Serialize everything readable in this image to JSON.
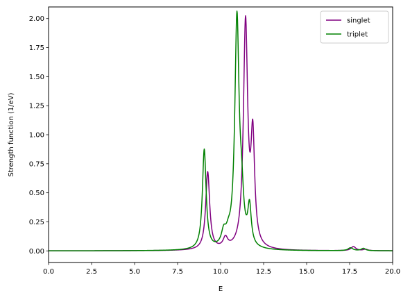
{
  "chart_data": {
    "type": "line",
    "title": "",
    "xlabel": "E",
    "ylabel": "Strength function (1/eV)",
    "xlim": [
      0,
      20
    ],
    "ylim": [
      -0.1,
      2.1
    ],
    "xticks": [
      0,
      2.5,
      5,
      7.5,
      10,
      12.5,
      15,
      17.5,
      20
    ],
    "xtick_labels": [
      "0.0",
      "2.5",
      "5.0",
      "7.5",
      "10.0",
      "12.5",
      "15.0",
      "17.5",
      "20.0"
    ],
    "yticks": [
      0,
      0.25,
      0.5,
      0.75,
      1.0,
      1.25,
      1.5,
      1.75,
      2.0
    ],
    "ytick_labels": [
      "0.00",
      "0.25",
      "0.50",
      "0.75",
      "1.00",
      "1.25",
      "1.50",
      "1.75",
      "2.00"
    ],
    "grid": false,
    "legend_position": "top-right",
    "series": [
      {
        "name": "singlet",
        "color": "#800080",
        "peaks": [
          {
            "center": 9.25,
            "height": 0.67,
            "width": 0.28
          },
          {
            "center": 10.28,
            "height": 0.085,
            "width": 0.32
          },
          {
            "center": 11.45,
            "height": 1.94,
            "width": 0.3
          },
          {
            "center": 11.87,
            "height": 0.91,
            "width": 0.26
          },
          {
            "center": 17.72,
            "height": 0.035,
            "width": 0.34
          },
          {
            "center": 18.42,
            "height": 0.012,
            "width": 0.3
          }
        ]
      },
      {
        "name": "triplet",
        "color": "#008000",
        "peaks": [
          {
            "center": 9.05,
            "height": 0.86,
            "width": 0.26
          },
          {
            "center": 10.18,
            "height": 0.115,
            "width": 0.32
          },
          {
            "center": 10.45,
            "height": 0.075,
            "width": 0.32
          },
          {
            "center": 10.95,
            "height": 1.97,
            "width": 0.3
          },
          {
            "center": 11.22,
            "height": 0.33,
            "width": 0.28
          },
          {
            "center": 11.68,
            "height": 0.33,
            "width": 0.24
          },
          {
            "center": 17.55,
            "height": 0.025,
            "width": 0.34
          },
          {
            "center": 18.3,
            "height": 0.02,
            "width": 0.3
          }
        ]
      }
    ]
  }
}
